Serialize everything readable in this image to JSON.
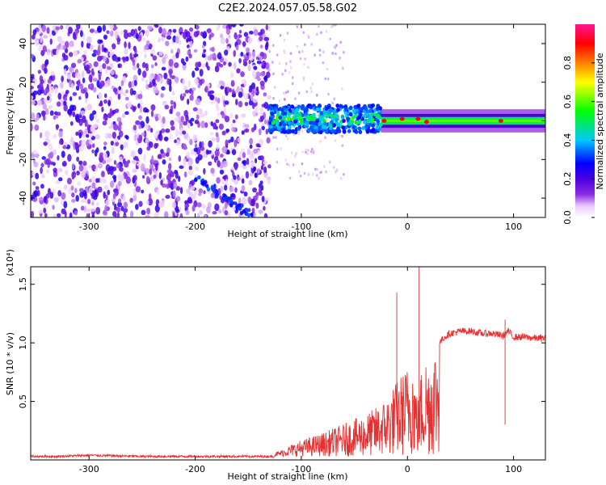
{
  "figure_title": "C2E2.2024.057.05.58.G02",
  "chart_data": [
    {
      "type": "heatmap",
      "xlabel": "Height of straight line (km)",
      "ylabel": "Frequency (Hz)",
      "xlim": [
        -355,
        130
      ],
      "ylim": [
        -50,
        50
      ],
      "xticks": [
        -300,
        -200,
        -100,
        0,
        100
      ],
      "xtick_labels": [
        "-300",
        "-200",
        "-100",
        "0",
        "100"
      ],
      "yticks": [
        -40,
        -20,
        0,
        20,
        40
      ],
      "ytick_labels": [
        "-40",
        "-20",
        "0",
        "20",
        "40"
      ],
      "colorbar": {
        "label": "Normalized spectral amplitude",
        "range": [
          0,
          1
        ],
        "ticks": [
          0.0,
          0.2,
          0.4,
          0.6,
          0.8
        ],
        "tick_labels": [
          "0.0",
          "0.2",
          "0.4",
          "0.6",
          "0.8"
        ],
        "colors": [
          "#ffffff",
          "#e8c8ff",
          "#8a2be2",
          "#4b00e0",
          "#0000ff",
          "#00c8ff",
          "#00ff00",
          "#ffff00",
          "#ff8000",
          "#ff0000",
          "#ff1493"
        ]
      },
      "regions": [
        {
          "x_range": [
            -355,
            -130
          ],
          "y_range": [
            -50,
            50
          ],
          "level": 0.15,
          "description_level": "diffuse purple noise"
        },
        {
          "x_range": [
            -130,
            -25
          ],
          "y_range": [
            -6,
            8
          ],
          "level": 0.45
        },
        {
          "x_range": [
            -25,
            130
          ],
          "y_range": [
            -2,
            2
          ],
          "level": 0.6
        },
        {
          "x_range": [
            -25,
            130
          ],
          "y_range": [
            -6,
            6
          ],
          "level": 0.1
        }
      ],
      "peaks": [
        {
          "x": -22,
          "y": 0,
          "value": 0.9
        },
        {
          "x": -5,
          "y": 1,
          "value": 0.9
        },
        {
          "x": 10,
          "y": 1,
          "value": 0.9
        },
        {
          "x": 18,
          "y": -0.5,
          "value": 0.9
        },
        {
          "x": 88,
          "y": 0,
          "value": 0.9
        }
      ],
      "streaks": [
        {
          "x": [
            -200,
            -145
          ],
          "y": [
            -30,
            -50
          ],
          "value": 0.35
        }
      ]
    },
    {
      "type": "line",
      "xlabel": "Height of straight line (km)",
      "ylabel": "SNR (10 * v/v)",
      "y_multiplier": "(x10⁴)",
      "xlim": [
        -355,
        130
      ],
      "ylim": [
        0,
        1.65
      ],
      "xticks": [
        -300,
        -200,
        -100,
        0,
        100
      ],
      "xtick_labels": [
        "-300",
        "-200",
        "-100",
        "0",
        "100"
      ],
      "yticks": [
        0.5,
        1.0,
        1.5
      ],
      "ytick_labels": [
        "0.5",
        "1.0",
        "1.5"
      ],
      "series": [
        {
          "color": "#e83030",
          "x": [
            -355,
            -330,
            -300,
            -250,
            -200,
            -150,
            -125,
            -120,
            -110,
            -100,
            -90,
            -80,
            -70,
            -60,
            -50,
            -40,
            -30,
            -20,
            -15,
            -10,
            -5,
            0,
            5,
            10,
            15,
            20,
            25,
            30,
            35,
            40,
            50,
            60,
            70,
            80,
            90,
            95,
            100,
            110,
            120,
            130
          ],
          "values": [
            0.03,
            0.03,
            0.04,
            0.03,
            0.03,
            0.03,
            0.03,
            0.05,
            0.1,
            0.14,
            0.17,
            0.2,
            0.24,
            0.28,
            0.32,
            0.36,
            0.42,
            0.5,
            0.58,
            0.65,
            0.72,
            0.78,
            0.85,
            0.5,
            0.9,
            0.85,
            0.95,
            1.0,
            1.05,
            1.08,
            1.1,
            1.1,
            1.08,
            1.08,
            1.06,
            1.1,
            1.05,
            1.05,
            1.04,
            1.04
          ]
        }
      ],
      "spikes": [
        {
          "x": -10,
          "value": 1.43
        },
        {
          "x": 11,
          "value": 1.65
        },
        {
          "x": 10,
          "value": 0.28
        },
        {
          "x": 92,
          "value": 1.2
        }
      ]
    }
  ]
}
